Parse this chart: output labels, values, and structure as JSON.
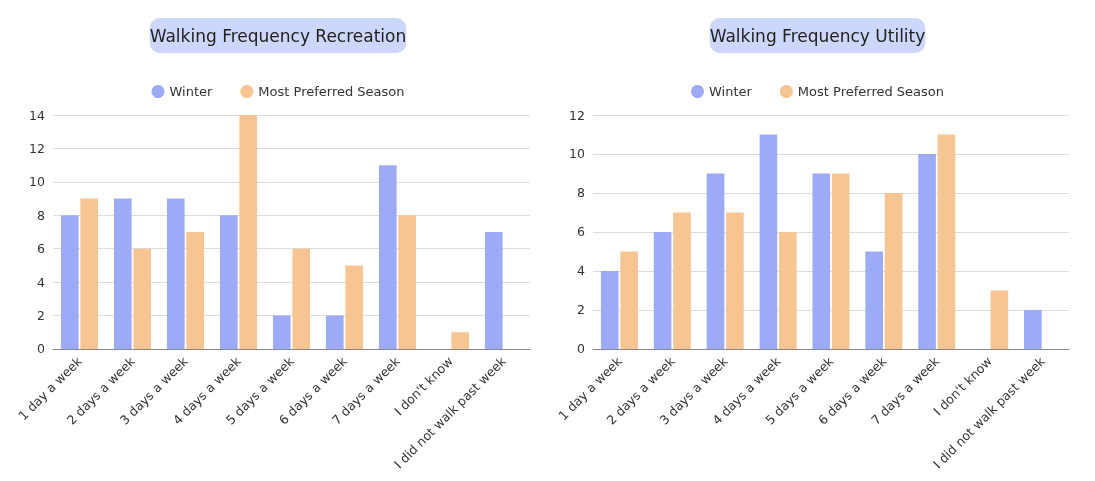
{
  "chart_data": [
    {
      "type": "bar",
      "title": "Walking Frequency Recreation",
      "categories": [
        "1 day a week",
        "2 days a week",
        "3 days a week",
        "4 days a week",
        "5 days a week",
        "6 days a week",
        "7 days a week",
        "I don't know",
        "I did not walk past week"
      ],
      "series": [
        {
          "name": "Winter",
          "color": "#9dabf7",
          "values": [
            8,
            9,
            9,
            8,
            2,
            2,
            11,
            0,
            7
          ]
        },
        {
          "name": "Most Preferred Season",
          "color": "#f7c592",
          "values": [
            9,
            6,
            7,
            14,
            6,
            5,
            8,
            1,
            0
          ]
        }
      ],
      "ylim": [
        0,
        14
      ],
      "yticks": [
        0,
        2,
        4,
        6,
        8,
        10,
        12,
        14
      ],
      "grid": "y",
      "legend": "top"
    },
    {
      "type": "bar",
      "title": "Walking Frequency Utility",
      "categories": [
        "1 day a week",
        "2 days a week",
        "3 days a week",
        "4 days a week",
        "5 days a week",
        "6 days a week",
        "7 days a week",
        "I don't know",
        "I did not walk past week"
      ],
      "series": [
        {
          "name": "Winter",
          "color": "#9dabf7",
          "values": [
            4,
            6,
            9,
            11,
            9,
            5,
            10,
            0,
            2
          ]
        },
        {
          "name": "Most Preferred Season",
          "color": "#f7c592",
          "values": [
            5,
            7,
            7,
            6,
            9,
            8,
            11,
            3,
            0
          ]
        }
      ],
      "ylim": [
        0,
        12
      ],
      "yticks": [
        0,
        2,
        4,
        6,
        8,
        10,
        12
      ],
      "grid": "y",
      "legend": "top"
    }
  ]
}
